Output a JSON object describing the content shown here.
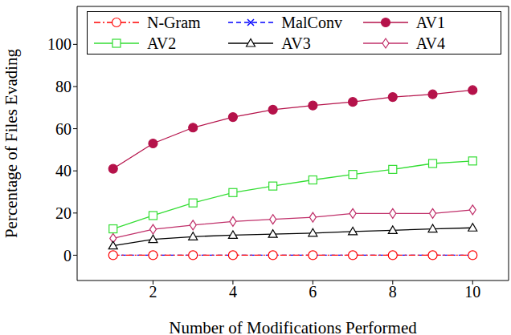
{
  "chart_data": {
    "type": "line",
    "x_label": "Number of Modifications Performed",
    "y_label": "Percentage of Files Evading",
    "x": [
      1,
      2,
      3,
      4,
      5,
      6,
      7,
      8,
      9,
      10
    ],
    "xlim": [
      0.1,
      10.9
    ],
    "xticks": [
      2,
      4,
      6,
      8,
      10
    ],
    "ylim": [
      -12,
      118
    ],
    "yticks": [
      0,
      20,
      40,
      60,
      80,
      100
    ],
    "grid": false,
    "legend": "top",
    "series": [
      {
        "name": "N-Gram",
        "color": "#ff0000",
        "marker": "circle_open",
        "line_style": "dashdot",
        "values": [
          0,
          0,
          0,
          0,
          0,
          0,
          0,
          0,
          0,
          0
        ]
      },
      {
        "name": "MalConv",
        "color": "#0000ff",
        "marker": "x",
        "line_style": "dashed",
        "values": [
          0,
          0,
          0,
          0,
          0,
          0,
          0,
          0,
          0,
          0
        ]
      },
      {
        "name": "AV1",
        "color": "#b5124a",
        "marker": "circle",
        "line_style": "solid",
        "values": [
          41,
          53,
          60.5,
          65.5,
          69,
          71,
          72.7,
          75,
          76.3,
          78.3
        ]
      },
      {
        "name": "AV2",
        "color": "#33dd33",
        "marker": "square_open",
        "line_style": "solid",
        "values": [
          12.5,
          18.8,
          24.8,
          29.7,
          32.8,
          35.7,
          38.3,
          40.7,
          43.5,
          44.7
        ]
      },
      {
        "name": "AV3",
        "color": "#000000",
        "marker": "triangle_open",
        "line_style": "solid",
        "values": [
          4.5,
          7.5,
          8.8,
          9.5,
          10,
          10.5,
          11.2,
          11.8,
          12.5,
          13
        ]
      },
      {
        "name": "AV4",
        "color": "#c0306a",
        "marker": "diamond_open",
        "line_style": "solid",
        "values": [
          8,
          12.3,
          14.3,
          16,
          17,
          18,
          19.8,
          19.8,
          19.8,
          21.5
        ]
      }
    ]
  }
}
